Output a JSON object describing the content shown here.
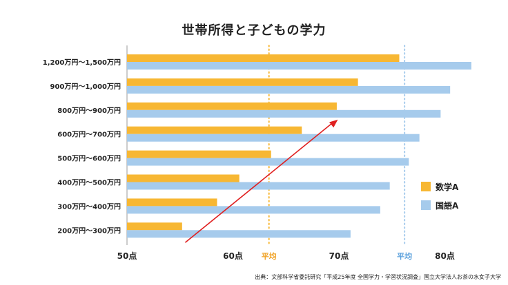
{
  "chart_data": {
    "type": "bar",
    "orientation": "horizontal",
    "title": "世帯所得と子どもの学力",
    "categories": [
      "1,200万円〜1,500万円",
      "900万円〜1,000万円",
      "800万円〜900万円",
      "600万円〜700万円",
      "500万円〜600万円",
      "400万円〜500万円",
      "300万円〜400万円",
      "200万円〜300万円"
    ],
    "series": [
      {
        "name": "数学A",
        "color": "#f7b733",
        "values": [
          75.7,
          71.8,
          69.8,
          66.5,
          63.6,
          60.6,
          58.5,
          55.2
        ]
      },
      {
        "name": "国語A",
        "color": "#a6cbec",
        "values": [
          82.5,
          80.5,
          79.6,
          77.6,
          76.6,
          74.8,
          73.9,
          71.1
        ]
      }
    ],
    "xlim": [
      50,
      82
    ],
    "xticks": [
      {
        "value": 50,
        "label": "50点"
      },
      {
        "value": 60,
        "label": "60点"
      },
      {
        "value": 70,
        "label": "70点"
      },
      {
        "value": 80,
        "label": "80点"
      }
    ],
    "reference_lines": [
      {
        "name": "平均",
        "value": 63.4,
        "color": "#f7b733",
        "label": "平均"
      },
      {
        "name": "平均",
        "value": 76.2,
        "color": "#a6cbec",
        "label": "平均"
      }
    ],
    "legend": {
      "position": "right",
      "labels": [
        "数学A",
        "国語A"
      ]
    },
    "trend_arrow": {
      "color": "#e02020",
      "from": {
        "category": "200万円〜300万円",
        "value": 55.5
      },
      "to": {
        "category": "800万円〜900万円",
        "value": 69.9
      }
    },
    "source": "出典：文部科学省委託研究「平成25年度 全国学力・学習状況調査」国立大学法人お茶の水女子大学"
  }
}
